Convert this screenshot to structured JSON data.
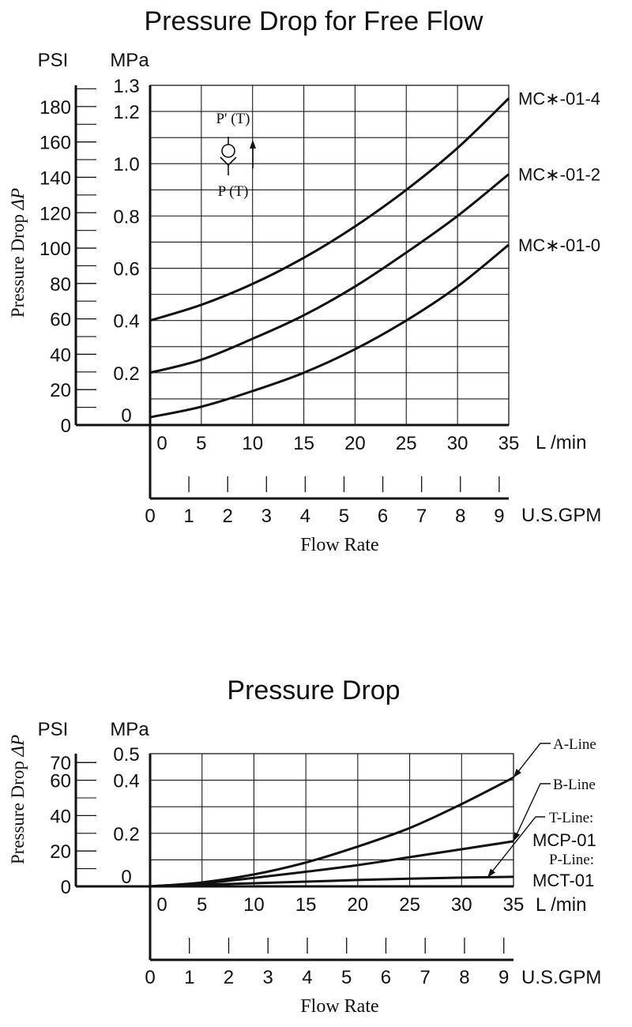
{
  "colors": {
    "ink": "#111111",
    "grid": "#1a1a1a",
    "background": "#ffffff"
  },
  "chart_data": [
    {
      "type": "line",
      "title": "Pressure Drop for Free Flow",
      "xlabel": "Flow Rate",
      "ylabel": "Pressure Drop ",
      "ylabel_symbol": "ΔP",
      "y_unit_left": "PSI",
      "y_unit_right": "MPa",
      "x_unit_top": "L /min",
      "x_unit_bottom": "U.S.GPM",
      "xlim": [
        0,
        35
      ],
      "ylim": [
        0,
        1.3
      ],
      "x_ticks": [
        "0",
        "5",
        "10",
        "15",
        "20",
        "25",
        "30",
        "35"
      ],
      "mpa_ticks": [
        {
          "value": 0,
          "label": "0"
        },
        {
          "value": 0.2,
          "label": "0.2"
        },
        {
          "value": 0.4,
          "label": "0.4"
        },
        {
          "value": 0.6,
          "label": "0.6"
        },
        {
          "value": 0.8,
          "label": "0.8"
        },
        {
          "value": 1.0,
          "label": "1.0"
        },
        {
          "value": 1.2,
          "label": "1.2"
        },
        {
          "value": 1.3,
          "label": "1.3"
        }
      ],
      "psi_ticks": [
        "0",
        "20",
        "40",
        "60",
        "80",
        "100",
        "120",
        "140",
        "160",
        "180"
      ],
      "gpm_ticks": [
        "0",
        "1",
        "2",
        "3",
        "4",
        "5",
        "6",
        "7",
        "8",
        "9"
      ],
      "series": [
        {
          "name": "MC∗-01-4",
          "x": [
            0,
            5,
            10,
            15,
            20,
            25,
            30,
            35
          ],
          "y": [
            0.4,
            0.46,
            0.54,
            0.64,
            0.76,
            0.9,
            1.06,
            1.25
          ]
        },
        {
          "name": "MC∗-01-2",
          "x": [
            0,
            5,
            10,
            15,
            20,
            25,
            30,
            35
          ],
          "y": [
            0.2,
            0.25,
            0.33,
            0.42,
            0.53,
            0.66,
            0.8,
            0.96
          ]
        },
        {
          "name": "MC∗-01-0",
          "x": [
            0,
            5,
            10,
            15,
            20,
            25,
            30,
            35
          ],
          "y": [
            0.03,
            0.07,
            0.13,
            0.2,
            0.29,
            0.4,
            0.53,
            0.69
          ]
        }
      ],
      "inset_symbol": {
        "top_label": "P' (T)",
        "bottom_label": "P (T)"
      }
    },
    {
      "type": "line",
      "title": "Pressure Drop",
      "xlabel": "Flow Rate",
      "ylabel": "Pressure Drop ",
      "ylabel_symbol": "ΔP",
      "y_unit_left": "PSI",
      "y_unit_right": "MPa",
      "x_unit_top": "L /min",
      "x_unit_bottom": "U.S.GPM",
      "xlim": [
        0,
        35
      ],
      "ylim": [
        0,
        0.5
      ],
      "x_ticks": [
        "0",
        "5",
        "10",
        "15",
        "20",
        "25",
        "30",
        "35"
      ],
      "mpa_ticks": [
        {
          "value": 0,
          "label": "0"
        },
        {
          "value": 0.2,
          "label": "0.2"
        },
        {
          "value": 0.4,
          "label": "0.4"
        },
        {
          "value": 0.5,
          "label": "0.5"
        }
      ],
      "psi_ticks": [
        "0",
        "20",
        "40",
        "60",
        "70"
      ],
      "gpm_ticks": [
        "0",
        "1",
        "2",
        "3",
        "4",
        "5",
        "6",
        "7",
        "8",
        "9"
      ],
      "series": [
        {
          "name": "A-Line",
          "x": [
            0,
            5,
            10,
            15,
            20,
            25,
            30,
            35
          ],
          "y": [
            0,
            0.015,
            0.045,
            0.09,
            0.15,
            0.22,
            0.31,
            0.41
          ]
        },
        {
          "name": "B-Line",
          "x": [
            0,
            5,
            10,
            15,
            20,
            25,
            30,
            35
          ],
          "y": [
            0,
            0.012,
            0.032,
            0.055,
            0.08,
            0.11,
            0.14,
            0.17
          ]
        },
        {
          "name": "T-Line: MCP-01 / P-Line: MCT-01",
          "x": [
            0,
            5,
            10,
            15,
            20,
            25,
            30,
            35
          ],
          "y": [
            0,
            0.006,
            0.012,
            0.018,
            0.024,
            0.029,
            0.033,
            0.036
          ]
        }
      ],
      "callouts": {
        "a": "A-Line",
        "b": "B-Line",
        "t1": "T-Line:",
        "t2": "MCP-01",
        "p1": "P-Line:",
        "p2": "MCT-01"
      }
    }
  ]
}
